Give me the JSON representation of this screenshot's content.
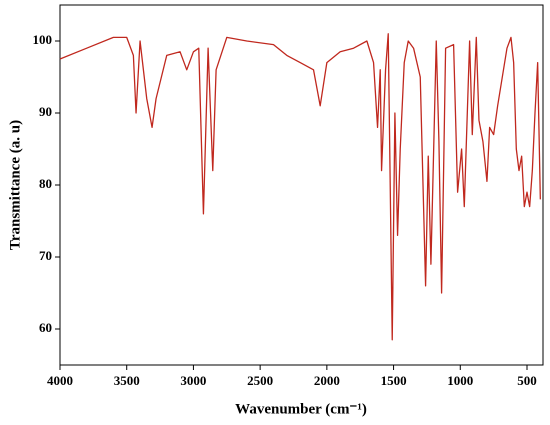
{
  "chart_data": {
    "type": "line",
    "xlabel": "Wavenumber (cm⁻¹)",
    "ylabel": "Transmittance (a. u)",
    "xlim": [
      4000,
      380
    ],
    "ylim": [
      55,
      105
    ],
    "xticks": [
      4000,
      3500,
      3000,
      2500,
      2000,
      1500,
      1000,
      500
    ],
    "yticks": [
      60,
      70,
      80,
      90,
      100
    ],
    "grid": false,
    "series": [
      {
        "color": "#c0281e",
        "x": [
          4000,
          3800,
          3600,
          3500,
          3450,
          3430,
          3400,
          3350,
          3310,
          3280,
          3200,
          3100,
          3050,
          3000,
          2960,
          2925,
          2890,
          2855,
          2830,
          2750,
          2600,
          2400,
          2300,
          2200,
          2100,
          2050,
          2000,
          1900,
          1800,
          1700,
          1650,
          1620,
          1600,
          1590,
          1560,
          1540,
          1510,
          1490,
          1470,
          1450,
          1420,
          1390,
          1350,
          1300,
          1260,
          1240,
          1220,
          1180,
          1160,
          1140,
          1110,
          1050,
          1020,
          990,
          970,
          930,
          910,
          880,
          860,
          830,
          800,
          780,
          750,
          720,
          650,
          620,
          600,
          580,
          560,
          540,
          520,
          500,
          480,
          460,
          440,
          420,
          400
        ],
        "values": [
          97.5,
          99,
          100.5,
          100.5,
          98,
          90,
          100,
          92,
          88,
          92,
          98,
          98.5,
          96,
          98.5,
          99,
          76,
          99,
          82,
          96,
          100.5,
          100,
          99.5,
          98,
          97,
          96,
          91,
          97,
          98.5,
          99,
          100,
          97,
          88,
          96,
          82,
          96,
          101,
          58.5,
          90,
          73,
          85,
          97,
          100,
          99,
          95,
          66,
          84,
          69,
          100,
          86,
          65,
          99,
          99.5,
          79,
          85,
          77,
          100,
          87,
          100.5,
          89,
          86,
          80.5,
          88,
          87,
          91,
          99,
          100.5,
          97,
          85,
          82,
          84,
          77,
          79,
          77,
          82,
          90,
          97,
          78
        ]
      }
    ]
  }
}
